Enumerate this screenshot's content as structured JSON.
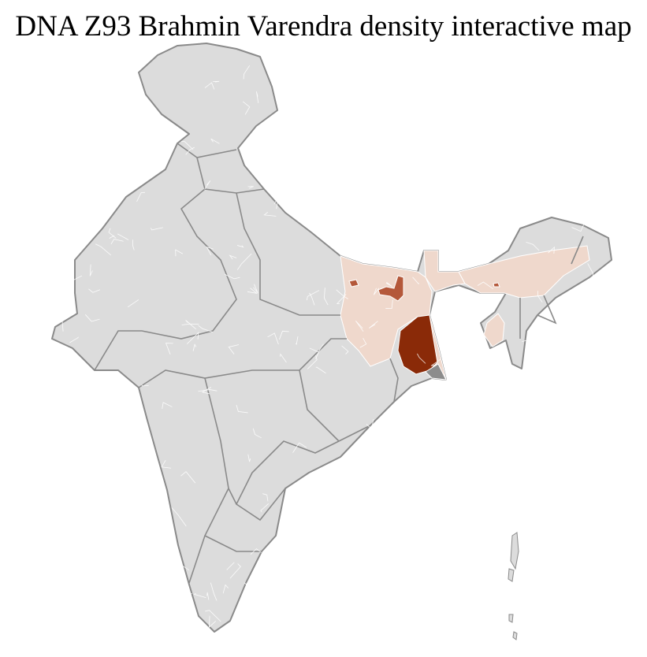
{
  "title": "DNA Z93 Brahmin Varendra density interactive map",
  "colors": {
    "no_data": "#dcdcdc",
    "district_border": "#ffffff",
    "state_border": "#8a8a8a",
    "low": "#efd8cc",
    "medium": "#b4583a",
    "high": "#8a2a08",
    "outside": "#8c8c8c"
  }
}
